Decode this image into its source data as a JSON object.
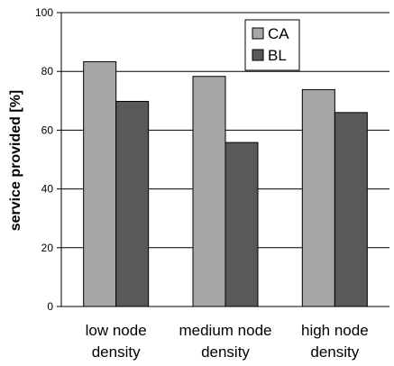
{
  "chart_data": {
    "type": "bar",
    "categories": [
      [
        "low  node",
        "density"
      ],
      [
        "medium node",
        "density"
      ],
      [
        "high node",
        "density"
      ]
    ],
    "series": [
      {
        "name": "CA",
        "values": [
          83.3,
          78.3,
          73.8
        ],
        "color": "#a6a6a6"
      },
      {
        "name": "BL",
        "values": [
          69.8,
          55.8,
          66.0
        ],
        "color": "#595959"
      }
    ],
    "ylabel": "service provided [%]",
    "ylim": [
      0,
      100
    ],
    "yticks": [
      "0",
      "20",
      "40",
      "60",
      "80",
      "100"
    ],
    "grid": true,
    "legend": "top-right"
  }
}
